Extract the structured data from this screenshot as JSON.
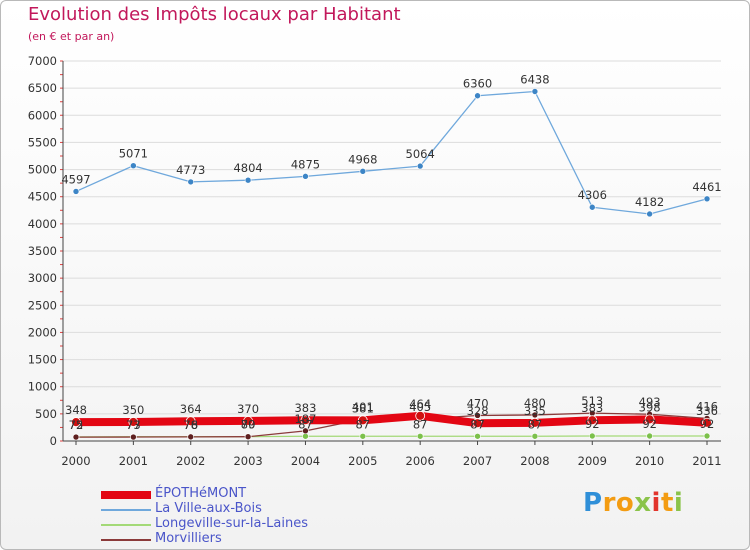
{
  "title": "Evolution des Impôts locaux par Habitant",
  "subtitle": "(en € et par an)",
  "logo_text": "Proxiti",
  "chart_data": {
    "type": "line",
    "title": "Evolution des Impôts locaux par Habitant",
    "xlabel": "",
    "ylabel": "(en € et par an)",
    "ylim": [
      0,
      7000
    ],
    "yticks": [
      0,
      500,
      1000,
      1500,
      2000,
      2500,
      3000,
      3500,
      4000,
      4500,
      5000,
      5500,
      6000,
      6500,
      7000
    ],
    "ytick_labels": [
      "0",
      "500",
      "1000",
      "1500",
      "2000",
      "2500",
      "3000",
      "3500",
      "4000",
      "4500",
      "5000",
      "5500",
      "6000",
      "6500",
      "7000"
    ],
    "categories": [
      "2000",
      "2001",
      "2002",
      "2003",
      "2004",
      "2005",
      "2006",
      "2007",
      "2008",
      "2009",
      "2010",
      "2011"
    ],
    "legend_position": "bottom-left",
    "series": [
      {
        "name": "ÉPOTHéMONT",
        "color": "#e30613",
        "marker": "#d01010",
        "values": [
          348,
          350,
          364,
          370,
          383,
          381,
          464,
          328,
          335,
          383,
          398,
          336
        ],
        "labels": [
          "348",
          "350",
          "364",
          "370",
          "383",
          "381",
          "464",
          "328",
          "335",
          "383",
          "398",
          "336"
        ]
      },
      {
        "name": "La Ville-aux-Bois",
        "color": "#6fa8dc",
        "marker": "#3d85c6",
        "values": [
          4597,
          5071,
          4773,
          4804,
          4875,
          4968,
          5064,
          6360,
          6438,
          4306,
          4182,
          4461
        ],
        "labels": [
          "4597",
          "5071",
          "4773",
          "4804",
          "4875",
          "4968",
          "5064",
          "6360",
          "6438",
          "4306",
          "4182",
          "4461"
        ]
      },
      {
        "name": "Longeville-sur-la-Laines",
        "color": "#a3d977",
        "marker": "#7cc04b",
        "values": [
          75,
          77,
          78,
          80,
          87,
          87,
          87,
          87,
          87,
          92,
          92,
          92
        ],
        "labels": [
          "75",
          "77",
          "78",
          "80",
          "87",
          "87",
          "87",
          "87",
          "87",
          "92",
          "92",
          "92"
        ]
      },
      {
        "name": "Morvilliers",
        "color": "#8b3a3a",
        "marker": "#5e1f1f",
        "values": [
          72,
          73,
          76,
          79,
          187,
          401,
          405,
          470,
          480,
          513,
          493,
          416
        ],
        "labels": [
          "72",
          "73",
          "76",
          "79",
          "187",
          "401",
          "405",
          "470",
          "480",
          "513",
          "493",
          "416"
        ]
      }
    ]
  }
}
